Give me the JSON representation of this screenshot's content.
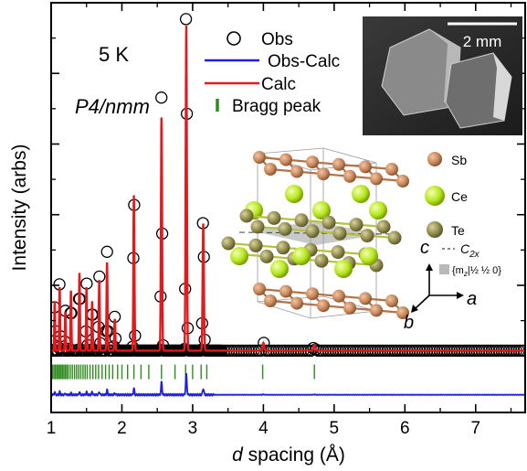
{
  "chart_data": {
    "type": "scatter",
    "title": "",
    "xlabel_prefix": "d",
    "xlabel_rest": " spacing (Å)",
    "ylabel": "Intensity (arbs)",
    "xlim": [
      1,
      7.7
    ],
    "xticks": [
      1,
      2,
      3,
      4,
      5,
      6,
      7
    ],
    "xtick_labels": [
      "1",
      "2",
      "3",
      "4",
      "5",
      "6",
      "7"
    ],
    "ylim": [
      -16,
      100
    ],
    "temperature_label": "5 K",
    "space_group_label": "P4/nmm",
    "legend": [
      {
        "label": "Obs",
        "marker": "open-circle",
        "color": "#000000"
      },
      {
        "label": "Obs-Calc",
        "marker": "line",
        "color": "#1f1fe0"
      },
      {
        "label": "Calc",
        "marker": "line",
        "color": "#e31a1c"
      },
      {
        "label": "Bragg peak",
        "marker": "tick",
        "color": "#2e8b1e"
      }
    ],
    "series": [
      {
        "name": "Obs",
        "color": "#000000",
        "peaks_d": [
          1.05,
          1.12,
          1.2,
          1.28,
          1.4,
          1.5,
          1.58,
          1.68,
          1.79,
          1.9,
          2.17,
          2.56,
          2.91,
          3.15,
          4.0,
          4.72
        ],
        "peaks_y": [
          16,
          20,
          12,
          18,
          24,
          20,
          16,
          22,
          28,
          10,
          48,
          74,
          105,
          40,
          2.5,
          1.8
        ],
        "background": 1.5
      },
      {
        "name": "Calc",
        "color": "#e31a1c",
        "peaks_d": [
          1.05,
          1.12,
          1.2,
          1.28,
          1.4,
          1.5,
          1.58,
          1.68,
          1.79,
          1.9,
          2.17,
          2.56,
          2.91,
          3.15,
          4.0,
          4.72
        ],
        "peaks_y": [
          14,
          18,
          11,
          17,
          22,
          18,
          14,
          20,
          25,
          9,
          44,
          66,
          92,
          36,
          2.2,
          1.6
        ]
      },
      {
        "name": "Obs-Calc",
        "color": "#1f1fe0",
        "offset": -11
      }
    ],
    "bragg_peaks": {
      "name": "Bragg peak",
      "color": "#2e8b1e",
      "offset": -4.5,
      "positions": [
        1.02,
        1.04,
        1.06,
        1.08,
        1.1,
        1.12,
        1.14,
        1.16,
        1.18,
        1.2,
        1.22,
        1.24,
        1.27,
        1.3,
        1.33,
        1.36,
        1.39,
        1.42,
        1.45,
        1.48,
        1.51,
        1.55,
        1.59,
        1.63,
        1.67,
        1.72,
        1.77,
        1.82,
        1.87,
        1.94,
        2.0,
        2.08,
        2.17,
        2.27,
        2.38,
        2.56,
        2.75,
        2.9,
        3.0,
        3.12,
        3.2,
        3.99,
        4.72
      ]
    }
  },
  "inset_photo": {
    "scale_bar_label": "2 mm"
  },
  "structure_inset": {
    "atoms": [
      {
        "label": "Sb",
        "color": "#c8865a"
      },
      {
        "label": "Ce",
        "color": "#b5e61d"
      },
      {
        "label": "Te",
        "color": "#8f8a4a"
      }
    ],
    "axis_labels": {
      "c": "c",
      "a": "a",
      "b": "b"
    },
    "symmetry_c2x": "C",
    "symmetry_c2x_sub": "2x",
    "mirror_label_prefix": "{m",
    "mirror_label_sub": "z",
    "mirror_label_suffix": "|½ ½ 0}"
  },
  "colors": {
    "frame": "#000000",
    "obs": "#000000",
    "calc": "#e31a1c",
    "diff": "#1f1fe0",
    "bragg": "#2e8b1e"
  }
}
